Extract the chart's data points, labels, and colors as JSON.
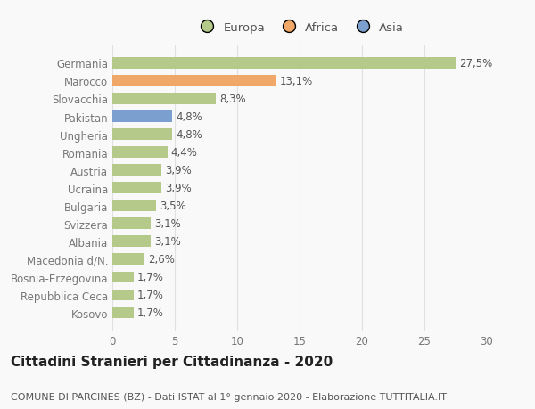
{
  "categories": [
    "Kosovo",
    "Repubblica Ceca",
    "Bosnia-Erzegovina",
    "Macedonia d/N.",
    "Albania",
    "Svizzera",
    "Bulgaria",
    "Ucraina",
    "Austria",
    "Romania",
    "Ungheria",
    "Pakistan",
    "Slovacchia",
    "Marocco",
    "Germania"
  ],
  "values": [
    1.7,
    1.7,
    1.7,
    2.6,
    3.1,
    3.1,
    3.5,
    3.9,
    3.9,
    4.4,
    4.8,
    4.8,
    8.3,
    13.1,
    27.5
  ],
  "labels": [
    "1,7%",
    "1,7%",
    "1,7%",
    "2,6%",
    "3,1%",
    "3,1%",
    "3,5%",
    "3,9%",
    "3,9%",
    "4,4%",
    "4,8%",
    "4,8%",
    "8,3%",
    "13,1%",
    "27,5%"
  ],
  "colors": [
    "#b5c98a",
    "#b5c98a",
    "#b5c98a",
    "#b5c98a",
    "#b5c98a",
    "#b5c98a",
    "#b5c98a",
    "#b5c98a",
    "#b5c98a",
    "#b5c98a",
    "#b5c98a",
    "#7b9fcf",
    "#b5c98a",
    "#f0a868",
    "#b5c98a"
  ],
  "legend_labels": [
    "Europa",
    "Africa",
    "Asia"
  ],
  "legend_colors": [
    "#b5c98a",
    "#f0a868",
    "#7b9fcf"
  ],
  "title_line1": "Cittadini Stranieri per Cittadinanza - 2020",
  "title_line2": "COMUNE DI PARCINES (BZ) - Dati ISTAT al 1° gennaio 2020 - Elaborazione TUTTITALIA.IT",
  "xlim": [
    0,
    30
  ],
  "xticks": [
    0,
    5,
    10,
    15,
    20,
    25,
    30
  ],
  "background_color": "#f9f9f9",
  "grid_color": "#e0e0e0",
  "bar_height": 0.62,
  "label_fontsize": 8.5,
  "tick_fontsize": 8.5,
  "title_fontsize1": 11,
  "title_fontsize2": 8
}
